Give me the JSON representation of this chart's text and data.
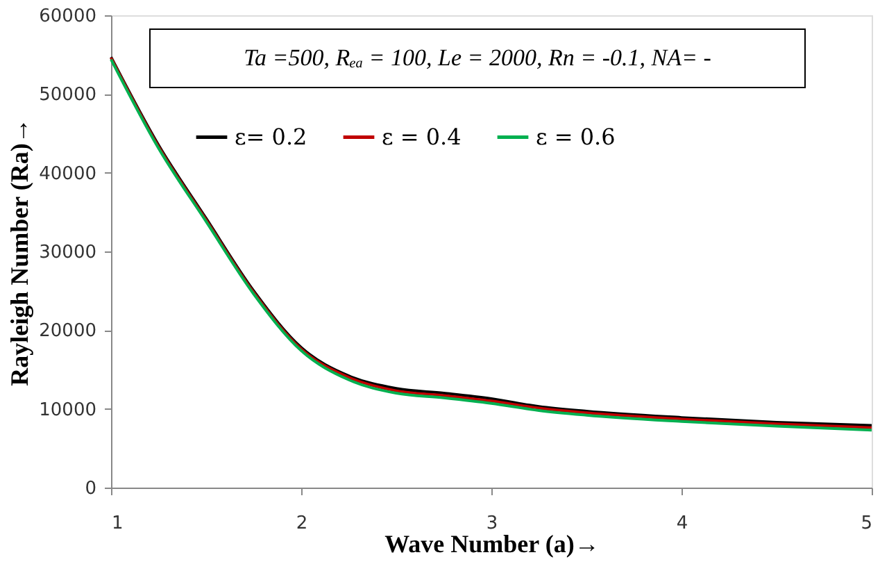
{
  "chart_data": {
    "type": "line",
    "xlabel": "Wave Number (a)→",
    "ylabel": "Rayleigh Number (Ra)→",
    "annotations": [
      "Ta =500, Rₑₐ = 100, Le = 2000, Rn = -0.1, NA= -"
    ],
    "x": [
      1,
      1.25,
      1.5,
      1.75,
      2,
      2.25,
      2.5,
      2.75,
      3,
      3.25,
      3.5,
      4,
      4.5,
      5
    ],
    "series": [
      {
        "name": "ε= 0.2",
        "color": "#000000",
        "values": [
          54700,
          43500,
          34200,
          25000,
          17800,
          14200,
          12600,
          12000,
          11300,
          10300,
          9700,
          8900,
          8300,
          7900
        ]
      },
      {
        "name": "ε = 0.4",
        "color": "#c00000",
        "values": [
          54600,
          43300,
          34000,
          24800,
          17600,
          14000,
          12300,
          11700,
          11000,
          10100,
          9500,
          8700,
          8100,
          7600
        ]
      },
      {
        "name": "ε = 0.6",
        "color": "#00b050",
        "values": [
          54400,
          43100,
          33800,
          24600,
          17400,
          13700,
          12000,
          11400,
          10700,
          9800,
          9200,
          8400,
          7800,
          7300
        ]
      }
    ],
    "xlim": [
      1,
      5
    ],
    "xticks": [
      1,
      2,
      3,
      4,
      5
    ],
    "ylim": [
      0,
      60000
    ],
    "yticks": [
      0,
      10000,
      20000,
      30000,
      40000,
      50000,
      60000
    ],
    "grid": false,
    "legend": "top",
    "marker": "none",
    "line_style": "solid"
  }
}
